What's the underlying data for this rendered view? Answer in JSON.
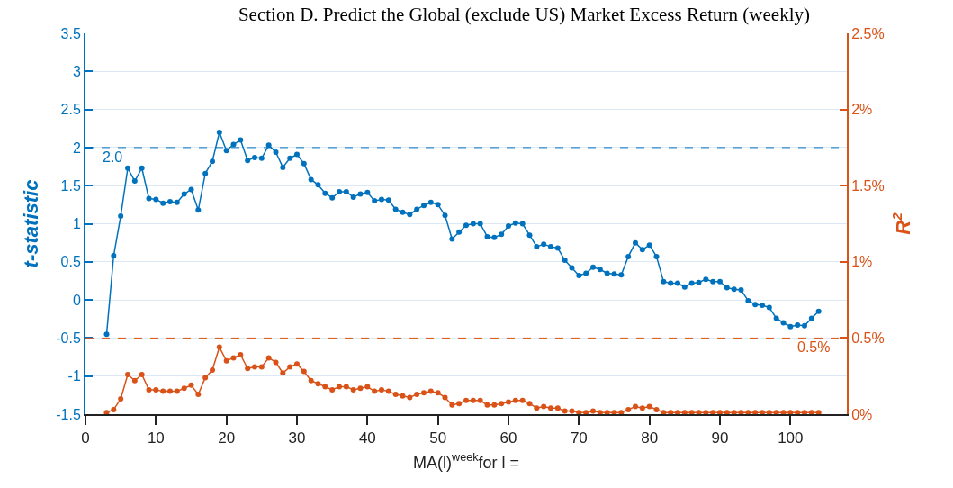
{
  "chart_data": {
    "type": "line",
    "title": "Section D. Predict the Global (exclude US) Market Excess Return (weekly)",
    "xlabel": "MA(l)$^{week}$for l =",
    "ylabel": "t-statistic",
    "y2label": "R$^{2}$",
    "x": [
      3,
      4,
      5,
      6,
      7,
      8,
      9,
      10,
      11,
      12,
      13,
      14,
      15,
      16,
      17,
      18,
      19,
      20,
      21,
      22,
      23,
      24,
      25,
      26,
      27,
      28,
      29,
      30,
      31,
      32,
      33,
      34,
      35,
      36,
      37,
      38,
      39,
      40,
      41,
      42,
      43,
      44,
      45,
      46,
      47,
      48,
      49,
      50,
      51,
      52,
      53,
      54,
      55,
      56,
      57,
      58,
      59,
      60,
      61,
      62,
      63,
      64,
      65,
      66,
      67,
      68,
      69,
      70,
      71,
      72,
      73,
      74,
      75,
      76,
      77,
      78,
      79,
      80,
      81,
      82,
      83,
      84,
      85,
      86,
      87,
      88,
      89,
      90,
      91,
      92,
      93,
      94,
      95,
      96,
      97,
      98,
      99,
      100,
      101,
      102,
      103,
      104
    ],
    "series": [
      {
        "color": "#0072bd",
        "values": [
          -0.45,
          0.58,
          1.1,
          1.73,
          1.56,
          1.73,
          1.33,
          1.32,
          1.27,
          1.29,
          1.28,
          1.39,
          1.45,
          1.18,
          1.66,
          1.82,
          2.2,
          1.96,
          2.04,
          2.1,
          1.83,
          1.87,
          1.86,
          2.03,
          1.94,
          1.74,
          1.86,
          1.91,
          1.79,
          1.58,
          1.51,
          1.4,
          1.34,
          1.42,
          1.42,
          1.35,
          1.39,
          1.41,
          1.3,
          1.32,
          1.31,
          1.19,
          1.15,
          1.12,
          1.19,
          1.24,
          1.28,
          1.25,
          1.11,
          0.8,
          0.89,
          0.98,
          1.0,
          1.0,
          0.83,
          0.82,
          0.86,
          0.97,
          1.01,
          1.0,
          0.85,
          0.7,
          0.73,
          0.7,
          0.68,
          0.52,
          0.42,
          0.32,
          0.35,
          0.43,
          0.4,
          0.35,
          0.34,
          0.33,
          0.57,
          0.75,
          0.66,
          0.72,
          0.57,
          0.24,
          0.22,
          0.22,
          0.17,
          0.22,
          0.23,
          0.27,
          0.24,
          0.24,
          0.16,
          0.14,
          0.13,
          -0.01,
          -0.06,
          -0.07,
          -0.1,
          -0.24,
          -0.3,
          -0.35,
          -0.33,
          -0.34,
          -0.24,
          -0.15
        ]
      },
      {
        "color": "#d95319",
        "axis": "y2",
        "values": [
          0.01,
          0.03,
          0.1,
          0.26,
          0.22,
          0.26,
          0.16,
          0.16,
          0.15,
          0.15,
          0.15,
          0.17,
          0.19,
          0.13,
          0.24,
          0.29,
          0.44,
          0.35,
          0.37,
          0.39,
          0.3,
          0.31,
          0.31,
          0.37,
          0.34,
          0.27,
          0.31,
          0.33,
          0.28,
          0.22,
          0.2,
          0.18,
          0.16,
          0.18,
          0.18,
          0.16,
          0.17,
          0.18,
          0.15,
          0.16,
          0.15,
          0.13,
          0.12,
          0.11,
          0.13,
          0.14,
          0.15,
          0.14,
          0.11,
          0.06,
          0.07,
          0.09,
          0.09,
          0.09,
          0.06,
          0.06,
          0.07,
          0.08,
          0.09,
          0.09,
          0.07,
          0.04,
          0.05,
          0.04,
          0.04,
          0.02,
          0.02,
          0.01,
          0.01,
          0.02,
          0.01,
          0.01,
          0.01,
          0.01,
          0.03,
          0.05,
          0.04,
          0.05,
          0.03,
          0.01,
          0.01,
          0.01,
          0.01,
          0.01,
          0.01,
          0.01,
          0.01,
          0.01,
          0.01,
          0.01,
          0.01,
          0.01,
          0.01,
          0.01,
          0.01,
          0.01,
          0.01,
          0.01,
          0.01,
          0.01,
          0.01,
          0.01
        ]
      }
    ],
    "xlim": [
      0,
      108
    ],
    "xticks": [
      0,
      10,
      20,
      30,
      40,
      50,
      60,
      70,
      80,
      90,
      100
    ],
    "ylim": [
      -1.5,
      3.5
    ],
    "yticks": [
      -1.5,
      -1,
      -0.5,
      0,
      0.5,
      1,
      1.5,
      2,
      2.5,
      3,
      3.5
    ],
    "y2lim": [
      0,
      2.5
    ],
    "y2ticks": [
      {
        "value": 0,
        "label": "0%"
      },
      {
        "value": 0.5,
        "label": "0.5%"
      },
      {
        "value": 1,
        "label": "1%"
      },
      {
        "value": 1.5,
        "label": "1.5%"
      },
      {
        "value": 2,
        "label": "2%"
      },
      {
        "value": 2.5,
        "label": "2.5%"
      }
    ],
    "ref_lines": [
      {
        "axis": "y",
        "value": 2,
        "label": "2.0",
        "color": "#0072bd",
        "line_style": "dashed"
      },
      {
        "axis": "y2",
        "value": 0.5,
        "label": "0.5%",
        "color": "#d95319",
        "line_style": "dashed"
      }
    ],
    "grid": "y",
    "legend": false,
    "marker": "circle",
    "line_style": "solid"
  }
}
